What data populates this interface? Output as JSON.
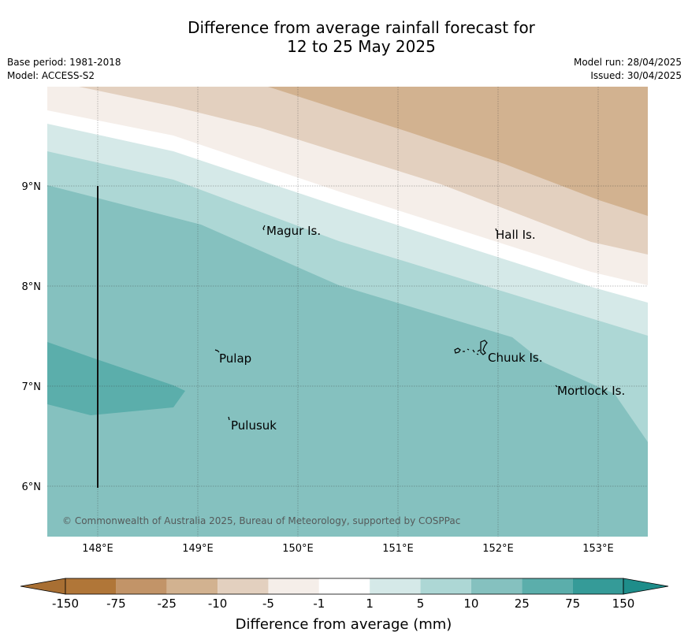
{
  "title": {
    "line1": "Difference from average rainfall forecast for",
    "line2": "12 to 25 May 2025"
  },
  "meta": {
    "base_period": "Base period: 1981-2018",
    "model": "Model: ACCESS-S2",
    "model_run": "Model run: 28/04/2025",
    "issued": "Issued: 30/04/2025"
  },
  "map": {
    "lon_ticks": [
      "148°E",
      "149°E",
      "150°E",
      "151°E",
      "152°E",
      "153°E"
    ],
    "lat_ticks": [
      "9°N",
      "8°N",
      "7°N",
      "6°N"
    ],
    "places": [
      {
        "name": "Magur Is.",
        "lon": 149.65,
        "lat": 8.57
      },
      {
        "name": "Hall Is.",
        "lon": 151.98,
        "lat": 8.53
      },
      {
        "name": "Pulap",
        "lon": 149.18,
        "lat": 7.36
      },
      {
        "name": "Chuuk Is.",
        "lon": 151.85,
        "lat": 7.38
      },
      {
        "name": "Mortlock Is.",
        "lon": 152.6,
        "lat": 7.0
      },
      {
        "name": "Pulusuk",
        "lon": 149.3,
        "lat": 6.7
      }
    ],
    "copyright": "© Commonwealth of Australia 2025, Bureau of Meteorology, supported by COSPPac"
  },
  "colorbar": {
    "title": "Difference from average (mm)",
    "labels": [
      "-150",
      "-75",
      "-25",
      "-10",
      "-5",
      "-1",
      "1",
      "5",
      "10",
      "25",
      "75",
      "150"
    ],
    "colors": {
      "under": "#a86f33",
      "bins": [
        "#b07638",
        "#c29468",
        "#d2b290",
        "#e3d0bf",
        "#f5eee9",
        "#ffffff",
        "#d5e9e8",
        "#add7d5",
        "#85c1bf",
        "#5baeab",
        "#359b98"
      ],
      "over": "#1e8d8a"
    }
  }
}
